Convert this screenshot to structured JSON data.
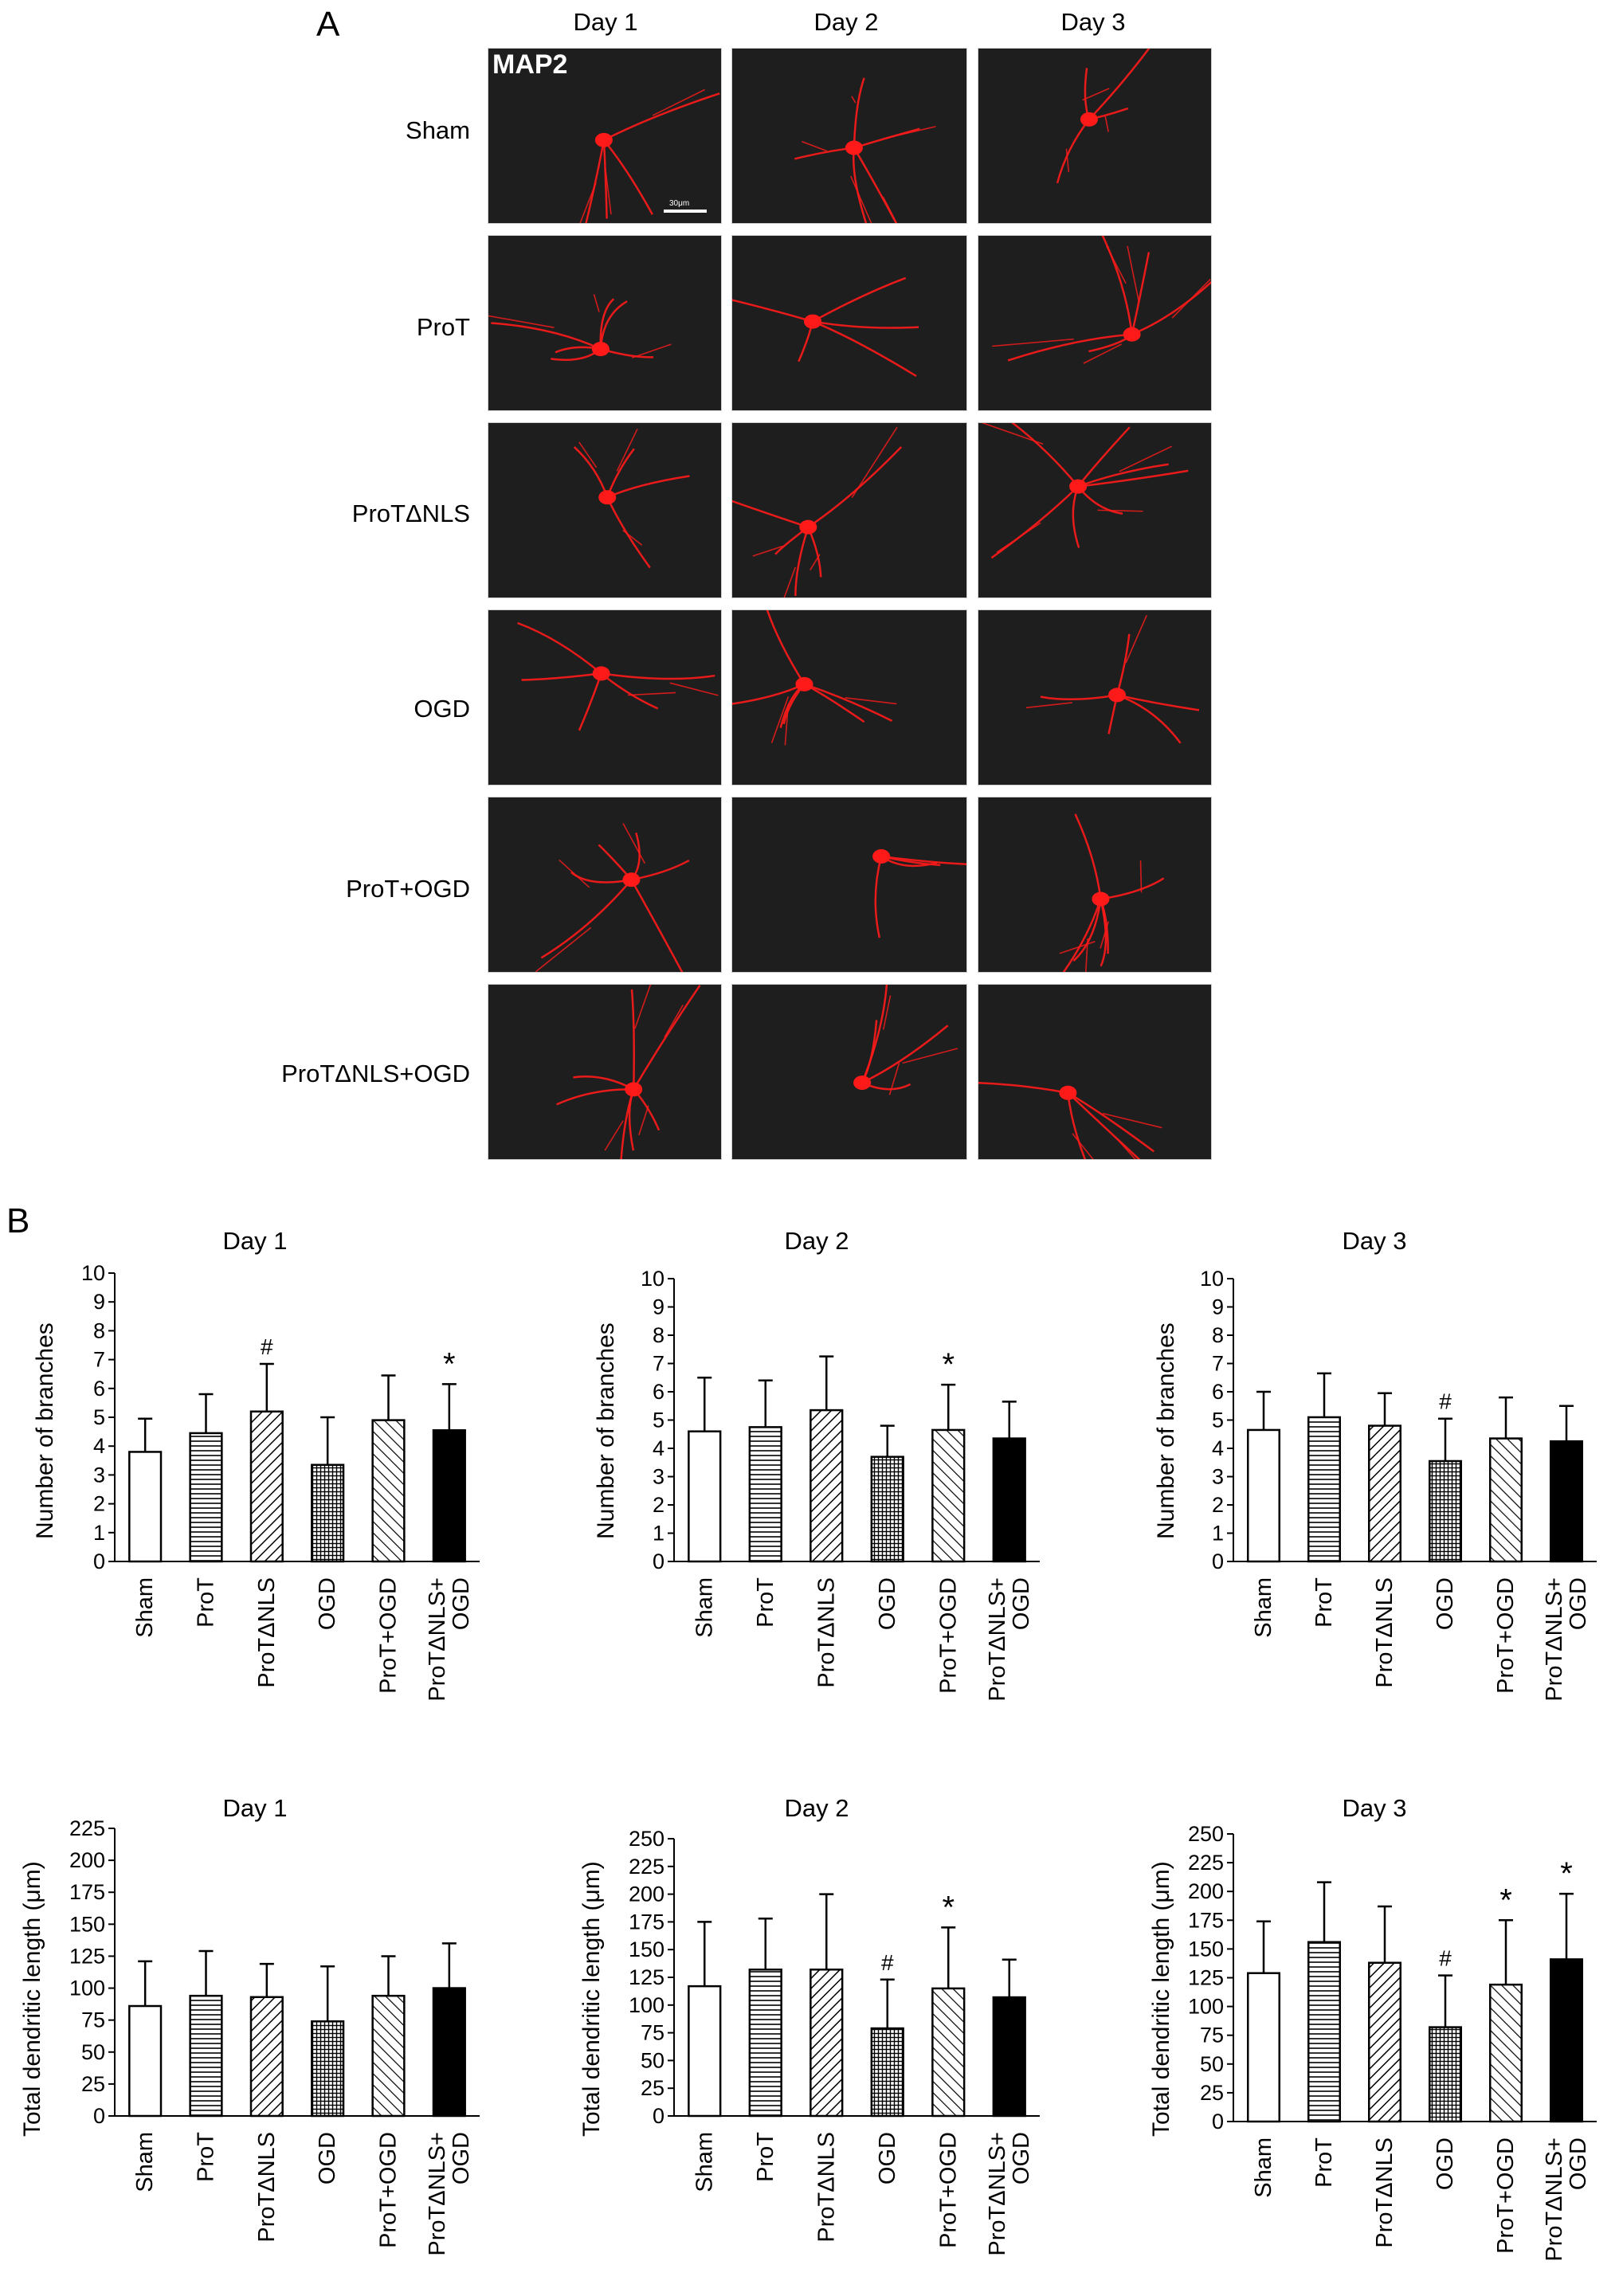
{
  "panel_a": {
    "letter": "A",
    "columns": [
      "Day 1",
      "Day 2",
      "Day 3"
    ],
    "rows": [
      "Sham",
      "ProT",
      "ProTΔNLS",
      "OGD",
      "ProT+OGD",
      "ProTΔNLS+OGD"
    ],
    "stain_label": "MAP2",
    "scale_bar_label": "30μm",
    "stain_color": "#ff1a1a"
  },
  "panel_b": {
    "letter": "B"
  },
  "chart_data": [
    {
      "type": "bar",
      "title": "Day 1",
      "ylabel": "Number of branches",
      "ylim": [
        0,
        10
      ],
      "yticks": [
        0,
        1,
        2,
        3,
        4,
        5,
        6,
        7,
        8,
        9,
        10
      ],
      "categories": [
        "Sham",
        "ProT",
        "ProTΔNLS",
        "OGD",
        "ProT+OGD",
        "ProTΔNLS+OGD"
      ],
      "category_labels": [
        [
          "Sham"
        ],
        [
          "ProT"
        ],
        [
          "ProTΔNLS"
        ],
        [
          "OGD"
        ],
        [
          "ProT+OGD"
        ],
        [
          "ProTΔNLS+",
          "OGD"
        ]
      ],
      "values": [
        3.8,
        4.45,
        5.2,
        3.35,
        4.9,
        4.55
      ],
      "errors": [
        1.15,
        1.35,
        1.65,
        1.65,
        1.55,
        1.6
      ],
      "annotations": [
        "",
        "",
        "#",
        "",
        "",
        "*"
      ]
    },
    {
      "type": "bar",
      "title": "Day 2",
      "ylabel": "Number of branches",
      "ylim": [
        0,
        10
      ],
      "yticks": [
        0,
        1,
        2,
        3,
        4,
        5,
        6,
        7,
        8,
        9,
        10
      ],
      "categories": [
        "Sham",
        "ProT",
        "ProTΔNLS",
        "OGD",
        "ProT+OGD",
        "ProTΔNLS+OGD"
      ],
      "category_labels": [
        [
          "Sham"
        ],
        [
          "ProT"
        ],
        [
          "ProTΔNLS"
        ],
        [
          "OGD"
        ],
        [
          "ProT+OGD"
        ],
        [
          "ProTΔNLS+",
          "OGD"
        ]
      ],
      "values": [
        4.6,
        4.75,
        5.35,
        3.7,
        4.65,
        4.35
      ],
      "errors": [
        1.9,
        1.65,
        1.9,
        1.1,
        1.6,
        1.3
      ],
      "annotations": [
        "",
        "",
        "",
        "",
        "*",
        ""
      ]
    },
    {
      "type": "bar",
      "title": "Day 3",
      "ylabel": "Number of branches",
      "ylim": [
        0,
        10
      ],
      "yticks": [
        0,
        1,
        2,
        3,
        4,
        5,
        6,
        7,
        8,
        9,
        10
      ],
      "categories": [
        "Sham",
        "ProT",
        "ProTΔNLS",
        "OGD",
        "ProT+OGD",
        "ProTΔNLS+OGD"
      ],
      "category_labels": [
        [
          "Sham"
        ],
        [
          "ProT"
        ],
        [
          "ProTΔNLS"
        ],
        [
          "OGD"
        ],
        [
          "ProT+OGD"
        ],
        [
          "ProTΔNLS+",
          "OGD"
        ]
      ],
      "values": [
        4.65,
        5.1,
        4.8,
        3.55,
        4.35,
        4.25
      ],
      "errors": [
        1.35,
        1.55,
        1.15,
        1.5,
        1.45,
        1.25
      ],
      "annotations": [
        "",
        "",
        "",
        "#",
        "",
        ""
      ]
    },
    {
      "type": "bar",
      "title": "Day 1",
      "ylabel": "Total dendritic length (μm)",
      "ylim": [
        0,
        225
      ],
      "yticks": [
        0,
        25,
        50,
        75,
        100,
        125,
        150,
        175,
        200,
        225
      ],
      "categories": [
        "Sham",
        "ProT",
        "ProTΔNLS",
        "OGD",
        "ProT+OGD",
        "ProTΔNLS+OGD"
      ],
      "category_labels": [
        [
          "Sham"
        ],
        [
          "ProT"
        ],
        [
          "ProTΔNLS"
        ],
        [
          "OGD"
        ],
        [
          "ProT+OGD"
        ],
        [
          "ProTΔNLS+",
          "OGD"
        ]
      ],
      "values": [
        86,
        94,
        93,
        74,
        94,
        100
      ],
      "errors": [
        35,
        35,
        26,
        43,
        31,
        35
      ],
      "annotations": [
        "",
        "",
        "",
        "",
        "",
        ""
      ]
    },
    {
      "type": "bar",
      "title": "Day 2",
      "ylabel": "Total dendritic length (μm)",
      "ylim": [
        0,
        250
      ],
      "yticks": [
        0,
        25,
        50,
        75,
        100,
        125,
        150,
        175,
        200,
        225,
        250
      ],
      "categories": [
        "Sham",
        "ProT",
        "ProTΔNLS",
        "OGD",
        "ProT+OGD",
        "ProTΔNLS+OGD"
      ],
      "category_labels": [
        [
          "Sham"
        ],
        [
          "ProT"
        ],
        [
          "ProTΔNLS"
        ],
        [
          "OGD"
        ],
        [
          "ProT+OGD"
        ],
        [
          "ProTΔNLS+",
          "OGD"
        ]
      ],
      "values": [
        117,
        132,
        132,
        79,
        115,
        107
      ],
      "errors": [
        58,
        46,
        68,
        44,
        55,
        34
      ],
      "annotations": [
        "",
        "",
        "",
        "#",
        "*",
        ""
      ]
    },
    {
      "type": "bar",
      "title": "Day 3",
      "ylabel": "Total dendritic length (μm)",
      "ylim": [
        0,
        250
      ],
      "yticks": [
        0,
        25,
        50,
        75,
        100,
        125,
        150,
        175,
        200,
        225,
        250
      ],
      "categories": [
        "Sham",
        "ProT",
        "ProTΔNLS",
        "OGD",
        "ProT+OGD",
        "ProTΔNLS+OGD"
      ],
      "category_labels": [
        [
          "Sham"
        ],
        [
          "ProT"
        ],
        [
          "ProTΔNLS"
        ],
        [
          "OGD"
        ],
        [
          "ProT+OGD"
        ],
        [
          "ProTΔNLS+",
          "OGD"
        ]
      ],
      "values": [
        129,
        156,
        138,
        82,
        119,
        141
      ],
      "errors": [
        45,
        52,
        49,
        45,
        56,
        57
      ],
      "annotations": [
        "",
        "",
        "",
        "#",
        "*",
        "*"
      ]
    }
  ]
}
